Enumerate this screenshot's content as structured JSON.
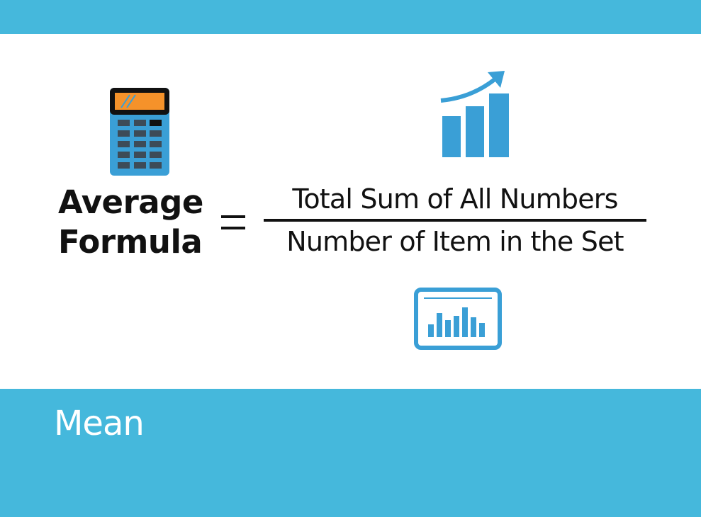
{
  "formula": {
    "lhs_line1": "Average",
    "lhs_line2": "Formula",
    "operator": "=",
    "numerator": "Total Sum of All Numbers",
    "denominator": "Number of Item in the Set"
  },
  "caption": "Mean",
  "colors": {
    "band": "#45b8dc",
    "icon_blue": "#3a9fd6",
    "calculator_screen": "#f5922a",
    "text": "#111111"
  },
  "icons": [
    "calculator-icon",
    "growth-chart-icon",
    "bar-chart-monitor-icon"
  ]
}
